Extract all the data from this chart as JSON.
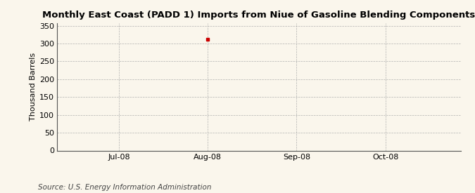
{
  "title": "Monthly East Coast (PADD 1) Imports from Niue of Gasoline Blending Components",
  "ylabel": "Thousand Barrels",
  "background_color": "#faf6ec",
  "plot_bg_color": "#faf6ec",
  "yticks": [
    0,
    50,
    100,
    150,
    200,
    250,
    300,
    350
  ],
  "ylim": [
    0,
    357
  ],
  "xtick_labels": [
    "Jul-08",
    "Aug-08",
    "Sep-08",
    "Oct-08"
  ],
  "xtick_positions": [
    1,
    2,
    3,
    4
  ],
  "xlim": [
    0.3,
    4.85
  ],
  "data_point_x": 2,
  "data_point_y": 311,
  "data_point_color": "#cc0000",
  "source_text": "Source: U.S. Energy Information Administration",
  "title_fontsize": 9.5,
  "label_fontsize": 8,
  "tick_fontsize": 8,
  "source_fontsize": 7.5,
  "grid_color": "#aaaaaa",
  "grid_linestyle": "--",
  "grid_linewidth": 0.5
}
